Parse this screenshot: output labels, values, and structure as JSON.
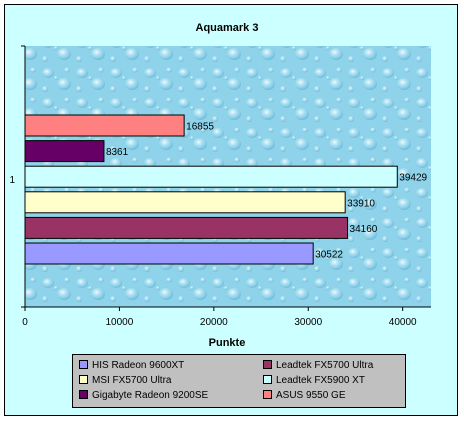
{
  "chart_data": {
    "type": "bar",
    "orientation": "horizontal",
    "title": "Aquamark 3",
    "xlabel": "Punkte",
    "ylabel": "",
    "category_label": "1",
    "xlim": [
      0,
      43000
    ],
    "xticks": [
      0,
      10000,
      20000,
      30000,
      40000
    ],
    "grid": false,
    "legend_position": "bottom",
    "series": [
      {
        "name": "HIS Radeon 9600XT",
        "value": 30522,
        "color": "#9999ff"
      },
      {
        "name": "Leadtek FX5700 Ultra",
        "value": 34160,
        "color": "#993366"
      },
      {
        "name": "MSI FX5700 Ultra",
        "value": 33910,
        "color": "#ffffcc"
      },
      {
        "name": "Leadtek FX5900 XT",
        "value": 39429,
        "color": "#ccffff"
      },
      {
        "name": "Gigabyte Radeon 9200SE",
        "value": 8361,
        "color": "#660066"
      },
      {
        "name": "ASUS 9550 GE",
        "value": 16855,
        "color": "#ff8080"
      }
    ]
  }
}
